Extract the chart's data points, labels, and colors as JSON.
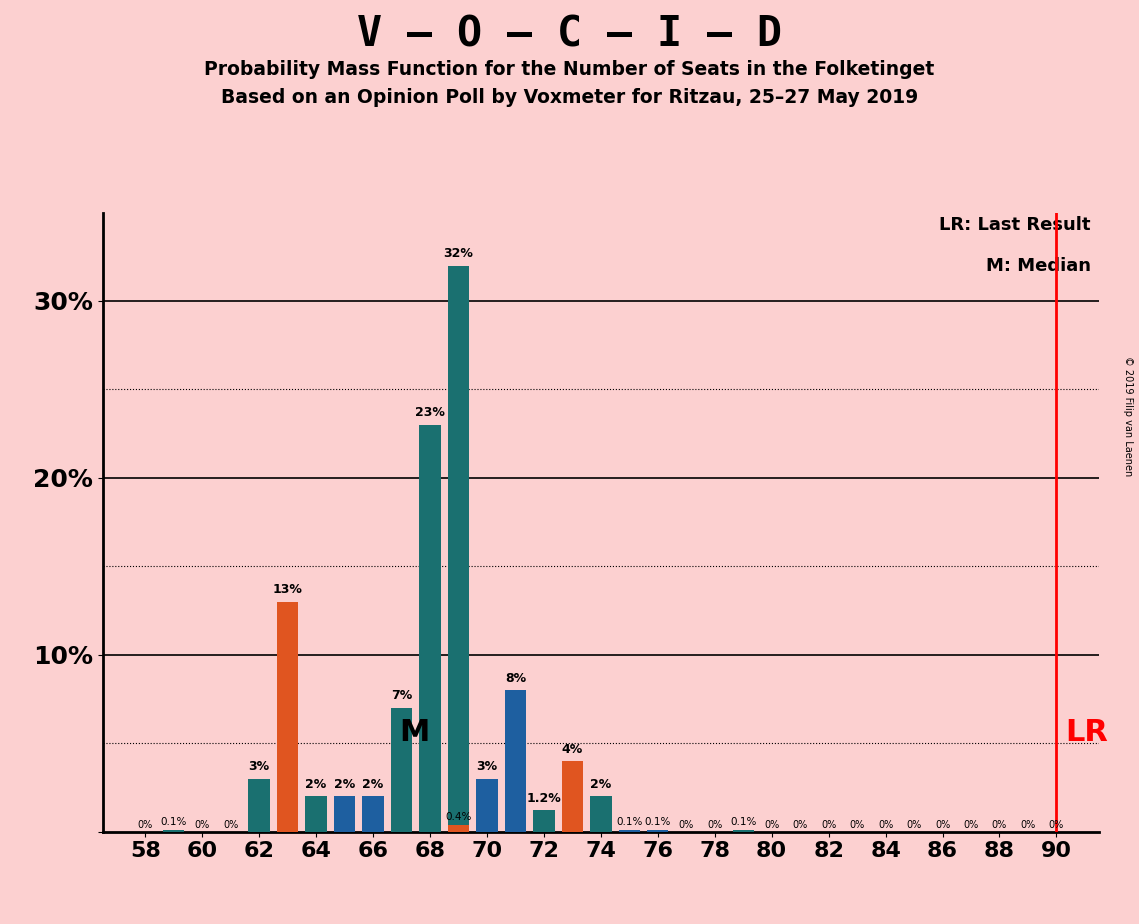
{
  "title": "V – O – C – I – D",
  "subtitle1": "Probability Mass Function for the Number of Seats in the Folketinget",
  "subtitle2": "Based on an Opinion Poll by Voxmeter for Ritzau, 25–27 May 2019",
  "copyright": "© 2019 Filip van Laenen",
  "background_color": "#fcd0d0",
  "legend_lr": "LR: Last Result",
  "legend_m": "M: Median",
  "median": 68,
  "last_result": 90,
  "x_ticks": [
    58,
    60,
    62,
    64,
    66,
    68,
    70,
    72,
    74,
    76,
    78,
    80,
    82,
    84,
    86,
    88,
    90
  ],
  "bars": [
    {
      "seat": 58,
      "value": 0.0,
      "color": "#1a7070",
      "label": "0%"
    },
    {
      "seat": 59,
      "value": 0.1,
      "color": "#1a7070",
      "label": "0.1%"
    },
    {
      "seat": 60,
      "value": 0.0,
      "color": "#1a7070",
      "label": "0%"
    },
    {
      "seat": 61,
      "value": 0.0,
      "color": "#1a7070",
      "label": "0%"
    },
    {
      "seat": 62,
      "value": 3.0,
      "color": "#1a7070",
      "label": "3%"
    },
    {
      "seat": 63,
      "value": 13.0,
      "color": "#e05520",
      "label": "13%"
    },
    {
      "seat": 64,
      "value": 2.0,
      "color": "#1a7070",
      "label": "2%"
    },
    {
      "seat": 65,
      "value": 2.0,
      "color": "#1e5fa0",
      "label": "2%"
    },
    {
      "seat": 66,
      "value": 2.0,
      "color": "#1e5fa0",
      "label": "2%"
    },
    {
      "seat": 67,
      "value": 7.0,
      "color": "#1a7070",
      "label": "7%"
    },
    {
      "seat": 68,
      "value": 23.0,
      "color": "#1a7070",
      "label": "23%"
    },
    {
      "seat": 69,
      "value": 32.0,
      "color": "#1a7070",
      "label": "32%"
    },
    {
      "seat": 69,
      "value": 0.4,
      "color": "#e05520",
      "label": "0.4%"
    },
    {
      "seat": 70,
      "value": 3.0,
      "color": "#1e5fa0",
      "label": "3%"
    },
    {
      "seat": 71,
      "value": 8.0,
      "color": "#1e5fa0",
      "label": "8%"
    },
    {
      "seat": 72,
      "value": 1.2,
      "color": "#1a7070",
      "label": "1.2%"
    },
    {
      "seat": 73,
      "value": 4.0,
      "color": "#e05520",
      "label": "4%"
    },
    {
      "seat": 74,
      "value": 2.0,
      "color": "#1a7070",
      "label": "2%"
    },
    {
      "seat": 75,
      "value": 0.1,
      "color": "#1e5fa0",
      "label": "0.1%"
    },
    {
      "seat": 76,
      "value": 0.1,
      "color": "#1e5fa0",
      "label": "0.1%"
    },
    {
      "seat": 77,
      "value": 0.0,
      "color": "#1a7070",
      "label": "0%"
    },
    {
      "seat": 78,
      "value": 0.0,
      "color": "#1e5fa0",
      "label": "0%"
    },
    {
      "seat": 79,
      "value": 0.1,
      "color": "#1a7070",
      "label": "0.1%"
    },
    {
      "seat": 80,
      "value": 0.0,
      "color": "#1a7070",
      "label": "0%"
    },
    {
      "seat": 81,
      "value": 0.0,
      "color": "#1e5fa0",
      "label": "0%"
    },
    {
      "seat": 82,
      "value": 0.0,
      "color": "#1a7070",
      "label": "0%"
    },
    {
      "seat": 83,
      "value": 0.0,
      "color": "#1e5fa0",
      "label": "0%"
    },
    {
      "seat": 84,
      "value": 0.0,
      "color": "#1a7070",
      "label": "0%"
    },
    {
      "seat": 85,
      "value": 0.0,
      "color": "#1e5fa0",
      "label": "0%"
    },
    {
      "seat": 86,
      "value": 0.0,
      "color": "#1a7070",
      "label": "0%"
    },
    {
      "seat": 87,
      "value": 0.0,
      "color": "#1e5fa0",
      "label": "0%"
    },
    {
      "seat": 88,
      "value": 0.0,
      "color": "#1a7070",
      "label": "0%"
    },
    {
      "seat": 89,
      "value": 0.0,
      "color": "#1a7070",
      "label": "0%"
    },
    {
      "seat": 90,
      "value": 0.0,
      "color": "#1a7070",
      "label": "0%"
    }
  ],
  "solid_yticks": [
    10,
    20,
    30
  ],
  "dotted_yticks": [
    5,
    15,
    25
  ],
  "ylim": [
    0,
    35
  ]
}
